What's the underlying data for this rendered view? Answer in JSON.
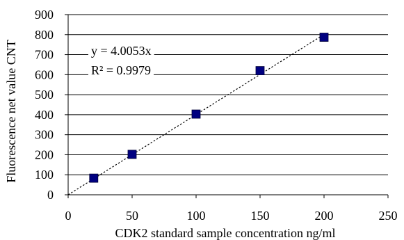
{
  "chart_data": {
    "type": "scatter",
    "title": "",
    "xlabel": "CDK2 standard sample concentration  ng/ml",
    "ylabel": "Fluorescence net value  CNT",
    "xlim": [
      0,
      250
    ],
    "ylim": [
      0,
      900
    ],
    "x_ticks": [
      0,
      50,
      100,
      150,
      200,
      250
    ],
    "y_ticks": [
      0,
      100,
      200,
      300,
      400,
      500,
      600,
      700,
      800,
      900
    ],
    "grid": "horizontal",
    "series": [
      {
        "x": [
          20,
          50,
          100,
          150,
          200
        ],
        "y": [
          83,
          202,
          403,
          620,
          787
        ]
      }
    ],
    "trendline": {
      "type": "linear-through-origin",
      "slope": 4.0053,
      "equation": "y = 4.0053x",
      "r_squared": "R² = 0.9979"
    },
    "colors": {
      "marker": "#000080",
      "gridline": "#000000",
      "trendline": "#000000"
    }
  }
}
